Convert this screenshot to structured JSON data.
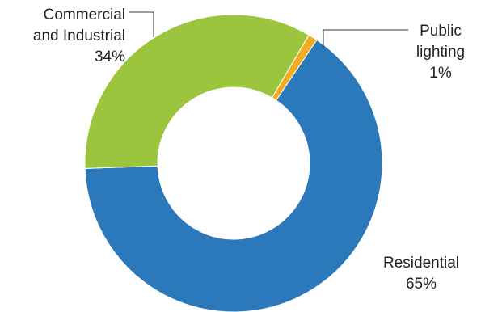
{
  "chart_data": {
    "type": "pie",
    "variant": "donut",
    "slices": [
      {
        "label_lines": [
          "Residential"
        ],
        "percent_label": "65%",
        "value": 65,
        "color": "#2b78bb"
      },
      {
        "label_lines": [
          "Commercial",
          "and Industrial"
        ],
        "percent_label": "34%",
        "value": 34,
        "color": "#9bc53d"
      },
      {
        "label_lines": [
          "Public",
          "lighting"
        ],
        "percent_label": "1%",
        "value": 1,
        "color": "#f0ac22"
      }
    ],
    "legend": "none"
  }
}
